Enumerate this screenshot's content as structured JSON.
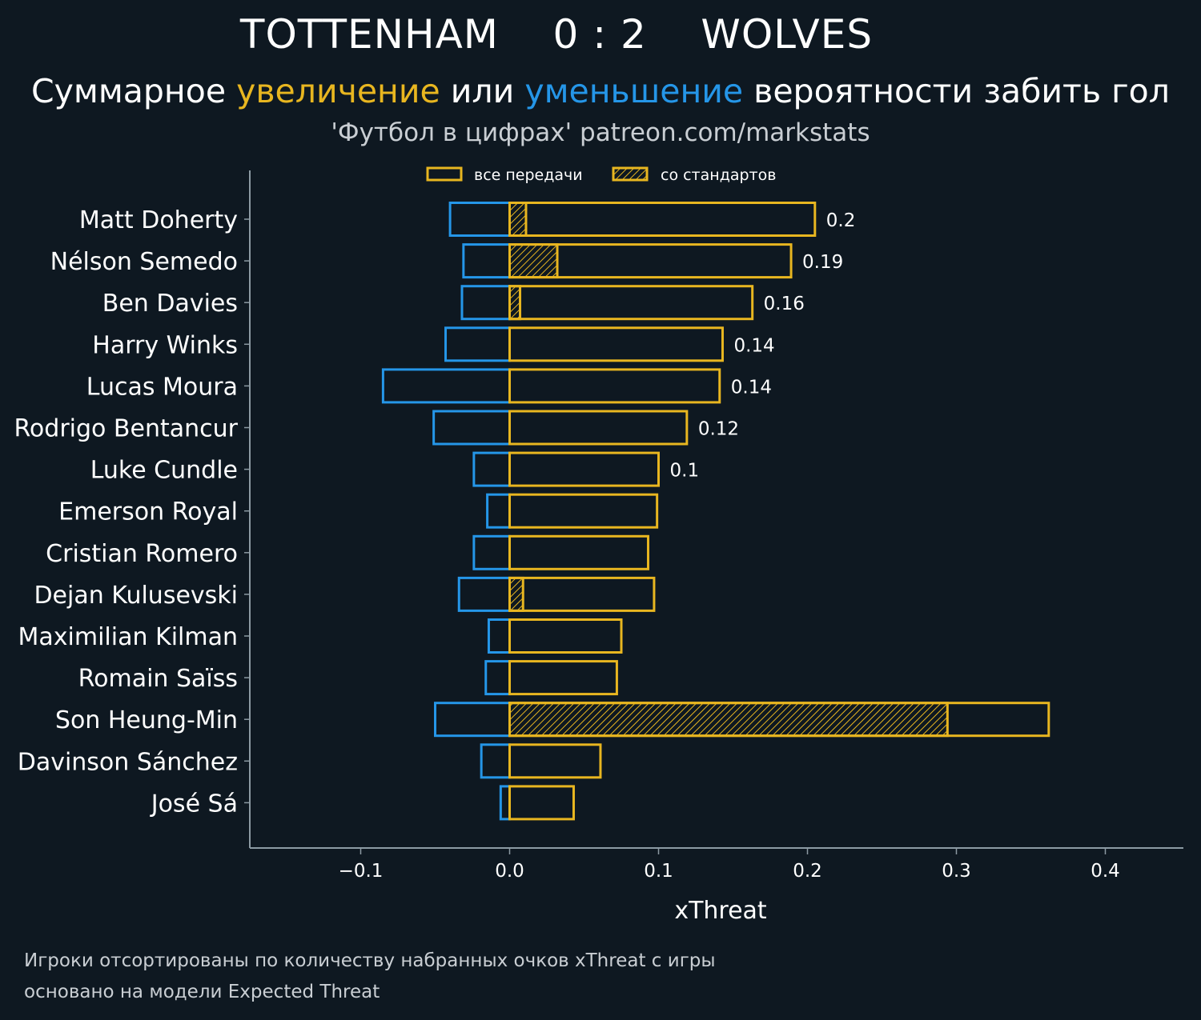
{
  "header": {
    "home_team": "TOTTENHAM",
    "score": "0 : 2",
    "away_team": "WOLVES"
  },
  "subtitle": {
    "part1": "Суммарное ",
    "increase": "увеличение",
    "part2": " или ",
    "decrease": "уменьшение",
    "part3": " вероятности забить гол"
  },
  "source": "'Футбол в цифрах' patreon.com/markstats",
  "footnotes": [
    "Игроки отсортированы по количеству набранных очков xThreat с игры",
    "основано на модели Expected Threat"
  ],
  "colors": {
    "background": "#0e1821",
    "increase": "#e8b620",
    "decrease": "#2596e8",
    "axis": "#8c9aa3",
    "text": "#ffffff",
    "muted": "#c9ced3"
  },
  "chart_data": {
    "type": "bar",
    "orientation": "horizontal",
    "xlabel": "xThreat",
    "xlim": [
      -0.175,
      0.45
    ],
    "xticks": [
      -0.1,
      0.0,
      0.1,
      0.2,
      0.3,
      0.4
    ],
    "xtick_labels": [
      "−0.1",
      "0.0",
      "0.1",
      "0.2",
      "0.3",
      "0.4"
    ],
    "legend": {
      "position": "top-center",
      "entries": [
        "все передачи",
        "со стандартов"
      ]
    },
    "categories": [
      "Matt Doherty",
      "Nélson Semedo",
      "Ben Davies",
      "Harry Winks",
      "Lucas Moura",
      "Rodrigo Bentancur",
      "Luke Cundle",
      "Emerson Royal",
      "Cristian Romero",
      "Dejan Kulusevski",
      "Maximilian Kilman",
      "Romain Saïss",
      "Son Heung-Min",
      "Davinson Sánchez",
      "José Sá"
    ],
    "series": [
      {
        "name": "все передачи (увеличение)",
        "values": [
          0.205,
          0.189,
          0.163,
          0.143,
          0.141,
          0.119,
          0.1,
          0.099,
          0.093,
          0.097,
          0.075,
          0.072,
          0.362,
          0.061,
          0.043
        ]
      },
      {
        "name": "со стандартов (увеличение)",
        "values": [
          0.011,
          0.032,
          0.007,
          0,
          0,
          0,
          0,
          0,
          0,
          0.009,
          0,
          0,
          0.294,
          0,
          0
        ]
      },
      {
        "name": "все передачи (уменьшение)",
        "values": [
          -0.04,
          -0.031,
          -0.032,
          -0.043,
          -0.085,
          -0.051,
          -0.024,
          -0.015,
          -0.024,
          -0.034,
          -0.014,
          -0.016,
          -0.05,
          -0.019,
          -0.006
        ]
      }
    ],
    "data_labels": [
      "0.2",
      "0.19",
      "0.16",
      "0.14",
      "0.14",
      "0.12",
      "0.1",
      "",
      "",
      "",
      "",
      "",
      "",
      "",
      ""
    ]
  }
}
